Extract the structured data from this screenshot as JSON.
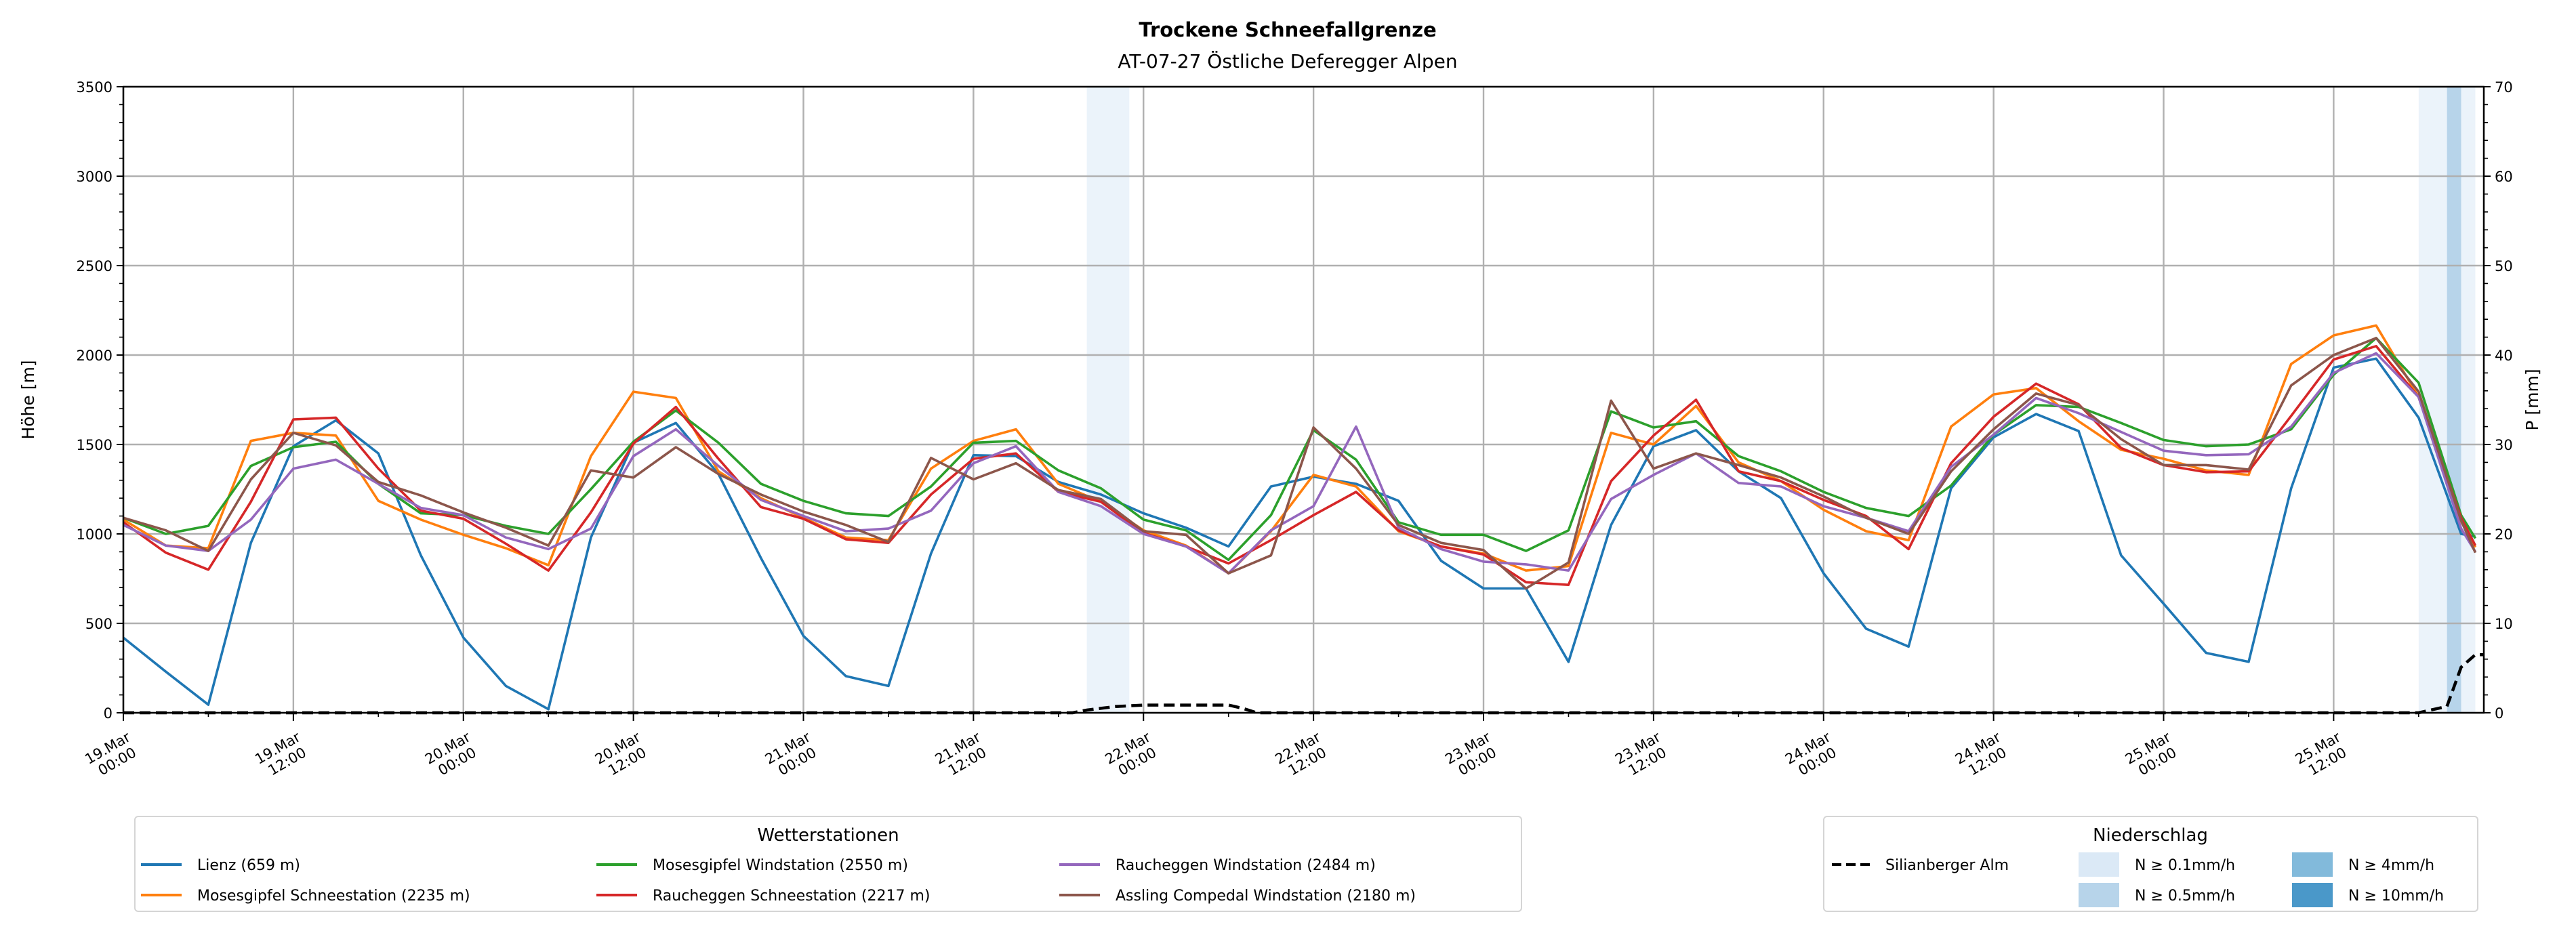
{
  "chart_data": {
    "type": "line",
    "title": "Trockene Schneefallgrenze",
    "subtitle": "AT-07-27 Östliche Deferegger Alpen",
    "ylabel": "Höhe [m]",
    "y2label": "P [mm]",
    "ylim": [
      0,
      3500
    ],
    "y2lim": [
      0,
      70
    ],
    "xlim_hours": [
      0,
      166.6
    ],
    "x_unit": "hours since 19.Mar 00:00",
    "grid": true,
    "y_ticks": [
      0,
      500,
      1000,
      1500,
      2000,
      2500,
      3000,
      3500
    ],
    "y2_ticks": [
      0,
      10,
      20,
      30,
      40,
      50,
      60,
      70
    ],
    "x_ticks": [
      {
        "h": 0,
        "label": [
          "19.Mar",
          "00:00"
        ]
      },
      {
        "h": 12,
        "label": [
          "19.Mar",
          "12:00"
        ]
      },
      {
        "h": 24,
        "label": [
          "20.Mar",
          "00:00"
        ]
      },
      {
        "h": 36,
        "label": [
          "20.Mar",
          "12:00"
        ]
      },
      {
        "h": 48,
        "label": [
          "21.Mar",
          "00:00"
        ]
      },
      {
        "h": 60,
        "label": [
          "21.Mar",
          "12:00"
        ]
      },
      {
        "h": 72,
        "label": [
          "22.Mar",
          "00:00"
        ]
      },
      {
        "h": 84,
        "label": [
          "22.Mar",
          "12:00"
        ]
      },
      {
        "h": 96,
        "label": [
          "23.Mar",
          "00:00"
        ]
      },
      {
        "h": 108,
        "label": [
          "23.Mar",
          "12:00"
        ]
      },
      {
        "h": 120,
        "label": [
          "24.Mar",
          "00:00"
        ]
      },
      {
        "h": 132,
        "label": [
          "24.Mar",
          "12:00"
        ]
      },
      {
        "h": 144,
        "label": [
          "25.Mar",
          "00:00"
        ]
      },
      {
        "h": 156,
        "label": [
          "25.Mar",
          "12:00"
        ]
      }
    ],
    "x_hours": [
      0,
      3,
      6,
      9,
      12,
      15,
      18,
      21,
      24,
      27,
      30,
      33,
      36,
      39,
      42,
      45,
      48,
      51,
      54,
      57,
      60,
      63,
      66,
      69,
      72,
      75,
      78,
      81,
      84,
      87,
      90,
      93,
      96,
      99,
      102,
      105,
      108,
      111,
      114,
      117,
      120,
      123,
      126,
      129,
      132,
      135,
      138,
      141,
      144,
      147,
      150,
      153,
      156,
      159,
      162,
      165,
      166
    ],
    "series": [
      {
        "name": "Lienz (659 m)",
        "color": "#1f77b4",
        "values": [
          420,
          230,
          45,
          950,
          1490,
          1635,
          1450,
          880,
          420,
          150,
          20,
          980,
          1510,
          1620,
          1335,
          865,
          430,
          205,
          150,
          890,
          1440,
          1435,
          1290,
          1220,
          1115,
          1035,
          930,
          1265,
          1320,
          1280,
          1185,
          850,
          695,
          695,
          285,
          1050,
          1490,
          1580,
          1350,
          1200,
          780,
          470,
          370,
          1255,
          1540,
          1670,
          1575,
          880,
          610,
          335,
          285,
          1255,
          1930,
          1980,
          1650,
          1000,
          985
        ]
      },
      {
        "name": "Mosesgipfel Schneestation (2235 m)",
        "color": "#ff7f0e",
        "values": [
          1080,
          935,
          920,
          1520,
          1565,
          1550,
          1185,
          1080,
          995,
          920,
          825,
          1435,
          1795,
          1760,
          1350,
          1200,
          1090,
          980,
          965,
          1365,
          1520,
          1585,
          1280,
          1180,
          1020,
          935,
          780,
          1015,
          1330,
          1265,
          1015,
          930,
          890,
          795,
          820,
          1565,
          1500,
          1715,
          1400,
          1295,
          1135,
          1015,
          965,
          1600,
          1780,
          1815,
          1630,
          1470,
          1420,
          1355,
          1330,
          1950,
          2110,
          2165,
          1765,
          1070,
          925
        ]
      },
      {
        "name": "Mosesgipfel Windstation (2550 m)",
        "color": "#2ca02c",
        "values": [
          1090,
          1000,
          1045,
          1380,
          1485,
          1515,
          1280,
          1115,
          1105,
          1045,
          1000,
          1250,
          1515,
          1690,
          1510,
          1280,
          1185,
          1115,
          1100,
          1265,
          1510,
          1520,
          1355,
          1255,
          1080,
          1020,
          855,
          1105,
          1580,
          1415,
          1065,
          995,
          995,
          905,
          1020,
          1685,
          1595,
          1630,
          1435,
          1350,
          1235,
          1145,
          1100,
          1270,
          1555,
          1720,
          1710,
          1620,
          1525,
          1490,
          1500,
          1585,
          1890,
          2095,
          1845,
          1105,
          975
        ]
      },
      {
        "name": "Raucheggen Schneestation (2217 m)",
        "color": "#d62728",
        "values": [
          1065,
          895,
          800,
          1180,
          1640,
          1650,
          1365,
          1130,
          1085,
          945,
          795,
          1120,
          1505,
          1710,
          1420,
          1150,
          1085,
          970,
          950,
          1220,
          1420,
          1450,
          1235,
          1180,
          1005,
          930,
          835,
          965,
          1105,
          1235,
          1020,
          930,
          885,
          730,
          715,
          1295,
          1550,
          1750,
          1350,
          1295,
          1190,
          1100,
          915,
          1395,
          1655,
          1840,
          1725,
          1480,
          1385,
          1345,
          1350,
          1660,
          1975,
          2050,
          1765,
          1090,
          935
        ]
      },
      {
        "name": "Raucheggen Windstation (2484 m)",
        "color": "#9467bd",
        "values": [
          1050,
          935,
          905,
          1080,
          1365,
          1415,
          1280,
          1145,
          1105,
          980,
          915,
          1030,
          1435,
          1585,
          1380,
          1190,
          1100,
          1015,
          1030,
          1130,
          1395,
          1490,
          1235,
          1155,
          1000,
          930,
          780,
          1020,
          1155,
          1600,
          1035,
          915,
          845,
          830,
          795,
          1195,
          1330,
          1450,
          1285,
          1265,
          1155,
          1090,
          1015,
          1375,
          1555,
          1760,
          1675,
          1570,
          1465,
          1440,
          1445,
          1600,
          1900,
          2010,
          1765,
          1030,
          900
        ]
      },
      {
        "name": "Assling Compedal Windstation (2180 m)",
        "color": "#8c564b",
        "values": [
          1090,
          1020,
          905,
          1305,
          1565,
          1495,
          1290,
          1215,
          1120,
          1035,
          935,
          1355,
          1315,
          1485,
          1335,
          1220,
          1125,
          1050,
          955,
          1425,
          1305,
          1395,
          1245,
          1195,
          1015,
          995,
          780,
          880,
          1595,
          1365,
          1050,
          950,
          910,
          695,
          840,
          1745,
          1365,
          1450,
          1385,
          1315,
          1210,
          1090,
          1000,
          1350,
          1585,
          1785,
          1720,
          1530,
          1385,
          1385,
          1360,
          1830,
          2000,
          2095,
          1795,
          1075,
          895
        ]
      }
    ],
    "precip_line": {
      "name": "Silianberger Alm",
      "color": "#000000",
      "points": [
        [
          0,
          0
        ],
        [
          67,
          0
        ],
        [
          68,
          0.3
        ],
        [
          70,
          0.7
        ],
        [
          72,
          0.86
        ],
        [
          78,
          0.86
        ],
        [
          79,
          0.5
        ],
        [
          80,
          0
        ],
        [
          162,
          0
        ],
        [
          164,
          0.72
        ],
        [
          165,
          5.1
        ],
        [
          166,
          6.5
        ],
        [
          166.6,
          6.5
        ]
      ]
    },
    "precip_bands": [
      {
        "start": 68,
        "end": 71,
        "level": "0.1"
      },
      {
        "start": 162,
        "end": 164,
        "level": "0.1"
      },
      {
        "start": 164,
        "end": 165,
        "level": "0.5"
      },
      {
        "start": 165,
        "end": 166,
        "level": "0.1"
      }
    ],
    "precip_levels": [
      {
        "key": "0.1",
        "label": "N ≥ 0.1mm/h",
        "color": "#dbe9f6"
      },
      {
        "key": "0.5",
        "label": "N ≥ 0.5mm/h",
        "color": "#b7d4ea"
      },
      {
        "key": "4",
        "label": "N ≥ 4mm/h",
        "color": "#82badb"
      },
      {
        "key": "10",
        "label": "N ≥ 10mm/h",
        "color": "#4a98c9"
      }
    ],
    "legend_stations_title": "Wetterstationen",
    "legend_precip_title": "Niederschlag",
    "legend_placement": "bottom"
  }
}
